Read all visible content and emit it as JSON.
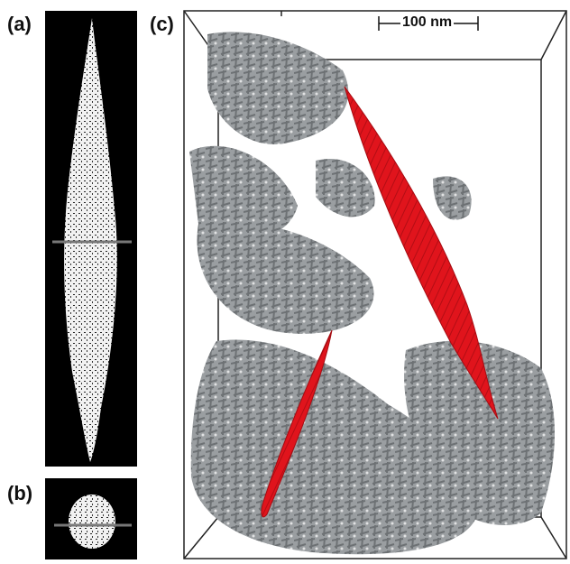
{
  "panels": {
    "a": {
      "label": "(a)"
    },
    "b": {
      "label": "(b)"
    },
    "c": {
      "label": "(c)"
    }
  },
  "scale_bar": {
    "text": "100 nm"
  },
  "colors": {
    "panel_background": "#000000",
    "network_white": "#f2f2f2",
    "network_gray": "#8f9396",
    "crystal_red": "#e0141c"
  }
}
